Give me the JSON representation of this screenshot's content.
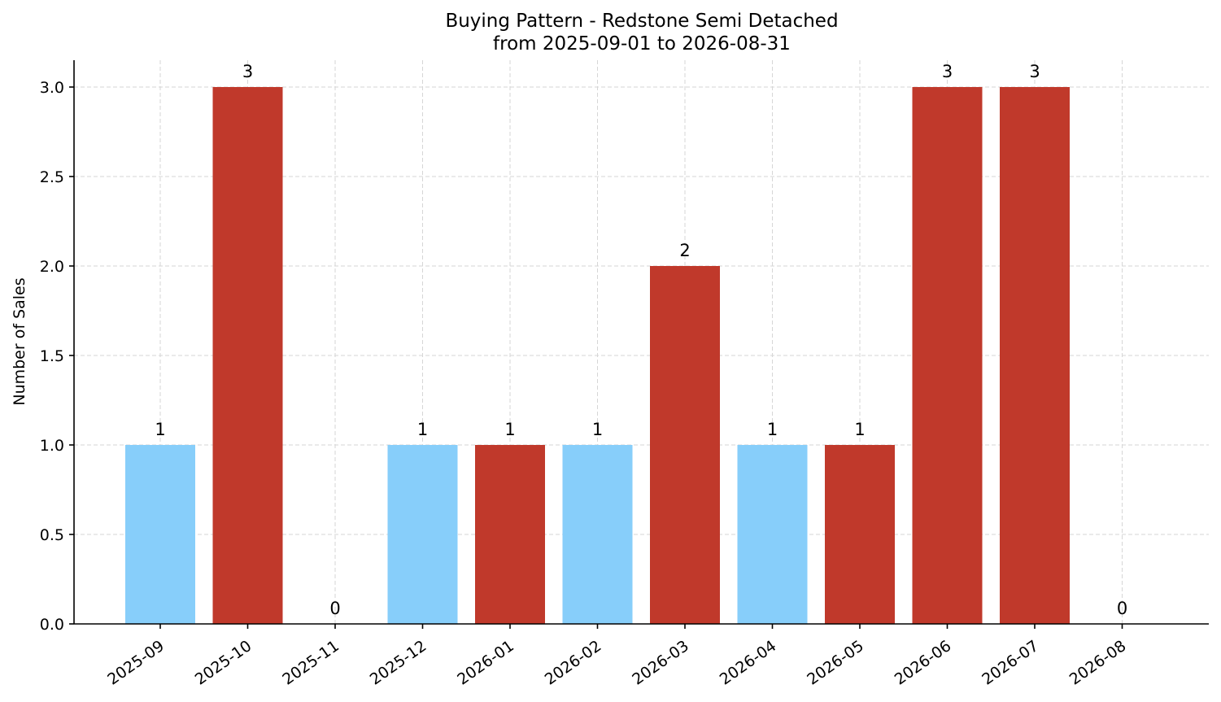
{
  "chart_data": {
    "type": "bar",
    "title": "Buying Pattern - Redstone Semi Detached",
    "subtitle": "from 2025-09-01 to 2026-08-31",
    "xlabel": "",
    "ylabel": "Number of Sales",
    "categories": [
      "2025-09",
      "2025-10",
      "2025-11",
      "2025-12",
      "2026-01",
      "2026-02",
      "2026-03",
      "2026-04",
      "2026-05",
      "2026-06",
      "2026-07",
      "2026-08"
    ],
    "values": [
      1,
      3,
      0,
      1,
      1,
      1,
      2,
      1,
      1,
      3,
      3,
      0
    ],
    "bar_colors": [
      "#87cefa",
      "#c0392b",
      "#87cefa",
      "#87cefa",
      "#c0392b",
      "#87cefa",
      "#c0392b",
      "#87cefa",
      "#c0392b",
      "#c0392b",
      "#c0392b",
      "#87cefa"
    ],
    "data_labels": [
      "1",
      "3",
      "0",
      "1",
      "1",
      "1",
      "2",
      "1",
      "1",
      "3",
      "3",
      "0"
    ],
    "ylim": [
      0,
      3.15
    ],
    "yticks": [
      0.0,
      0.5,
      1.0,
      1.5,
      2.0,
      2.5,
      3.0
    ],
    "ytick_labels": [
      "0.0",
      "0.5",
      "1.0",
      "1.5",
      "2.0",
      "2.5",
      "3.0"
    ],
    "grid": true,
    "legend": "none"
  }
}
